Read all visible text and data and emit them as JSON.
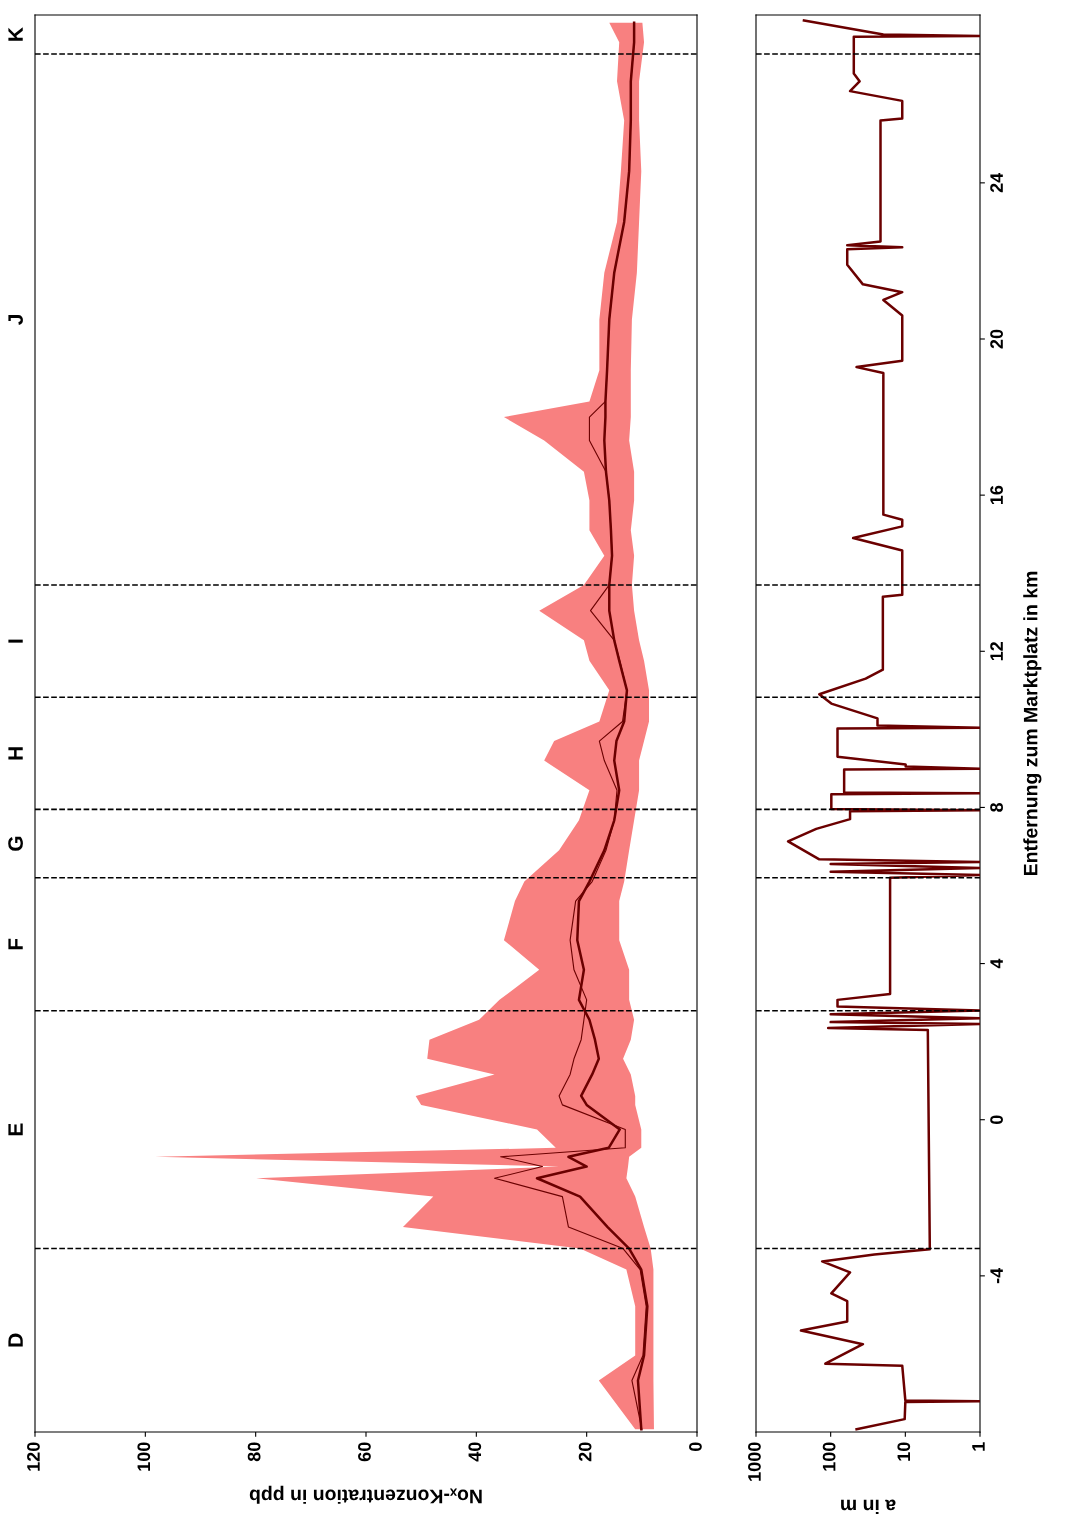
{
  "chart_data": [
    {
      "type": "line",
      "orientation": "horizontal",
      "xlabel": "Noₓ-Konzentration in ppb",
      "xlim": [
        120,
        0
      ],
      "xticks": [
        0,
        20,
        40,
        60,
        80,
        100,
        120
      ],
      "ylim": [
        -8.0,
        28.3
      ],
      "tick_labels": "x",
      "grid": false,
      "ref_lines": [
        {
          "axis": "y",
          "value": -3.3,
          "color": "#000000",
          "line_style": "dashed"
        },
        {
          "axis": "y",
          "value": 2.79,
          "color": "#000000",
          "line_style": "dashed"
        },
        {
          "axis": "y",
          "value": 6.2,
          "color": "#000000",
          "line_style": "dashed"
        },
        {
          "axis": "y",
          "value": 7.95,
          "color": "#000000",
          "line_style": "dashed"
        },
        {
          "axis": "y",
          "value": 10.82,
          "color": "#000000",
          "line_style": "dashed"
        },
        {
          "axis": "y",
          "value": 13.7,
          "color": "#000000",
          "line_style": "dashed"
        },
        {
          "axis": "y",
          "value": 27.3,
          "color": "#000000",
          "line_style": "dashed"
        }
      ],
      "annotations": [
        "D",
        "E",
        "F",
        "G",
        "H",
        "I",
        "J",
        "K"
      ],
      "series": [
        {
          "color": "#6b0000",
          "x": [
            -7.93,
            -6.68,
            -6.04,
            -4.78,
            -3.84,
            -3.3,
            -2.75,
            -1.97,
            -1.5,
            -1.2,
            -0.95,
            -0.72,
            -0.25,
            0.38,
            0.61,
            1.16,
            1.56,
            2.05,
            2.56,
            3.07,
            3.84,
            4.6,
            5.6,
            6.1,
            6.9,
            7.67,
            8.44,
            9.2,
            9.7,
            10.2,
            11.0,
            11.76,
            12.28,
            13.04,
            13.7,
            14.45,
            15.1,
            15.86,
            16.6,
            17.4,
            18.0,
            18.4,
            19.2,
            20.5,
            21.7,
            23.0,
            24.3,
            25.6,
            26.6,
            27.6,
            28.1
          ],
          "values": [
            10.1,
            10.7,
            9.6,
            9.0,
            10.1,
            12.3,
            16.2,
            21.2,
            29,
            20,
            23.3,
            16,
            14,
            20,
            21,
            19,
            17.8,
            18.5,
            19.5,
            21.4,
            20.5,
            21.7,
            21.4,
            19.5,
            16.8,
            15,
            14.1,
            15,
            14.6,
            13.2,
            12.7,
            14.1,
            15,
            15.9,
            15.9,
            15.4,
            15.6,
            15.9,
            16.5,
            16.8,
            16.6,
            16.6,
            16.3,
            15.9,
            15,
            13.2,
            12.3,
            12,
            12,
            11.4,
            11.4
          ],
          "lower": [
            7.8,
            7.9,
            7.9,
            7.9,
            7.9,
            8.4,
            9.6,
            11.2,
            12.8,
            12.5,
            12.3,
            10.1,
            10.1,
            11.2,
            11.2,
            12,
            13.4,
            12,
            11.4,
            12.3,
            12.3,
            14.1,
            14.1,
            13.2,
            12.3,
            11.4,
            10.5,
            10.5,
            9.6,
            8.7,
            8.7,
            9.6,
            10.5,
            11.4,
            11.8,
            11.4,
            12,
            11.4,
            11.4,
            12.3,
            12,
            12,
            12,
            11.8,
            10.9,
            10.5,
            10.1,
            10.5,
            10.5,
            9.6,
            9.9
          ],
          "upper": [
            11.2,
            17.8,
            11.2,
            11.2,
            12.8,
            21.2,
            53.3,
            47.8,
            79.9,
            25,
            98.2,
            25.6,
            29,
            50,
            51,
            36.7,
            48.9,
            48.5,
            39.5,
            35.8,
            28.6,
            35,
            33,
            31.3,
            25,
            21.4,
            19.5,
            27.7,
            25.9,
            17.7,
            15.9,
            19.5,
            20.5,
            28.6,
            20.5,
            16.8,
            19.5,
            19.5,
            20.5,
            27.7,
            35,
            19.5,
            17.7,
            17.7,
            16.8,
            14.5,
            13.8,
            13.2,
            14.5,
            14.1,
            15.9
          ]
        },
        {
          "color": "#6b0000",
          "x": [
            -7.93,
            -6.68,
            -6.04,
            -4.78,
            -3.84,
            -3.3,
            -2.75,
            -1.97,
            -1.5,
            -1.2,
            -0.95,
            -0.72,
            -0.25,
            0.38,
            0.61,
            1.16,
            1.56,
            2.05,
            2.56,
            3.07,
            3.84,
            4.6,
            5.6,
            6.1,
            6.9,
            7.67,
            8.44,
            9.2,
            9.7,
            10.2,
            11.0,
            11.76,
            12.28,
            13.04,
            13.7,
            14.45,
            15.1,
            15.86,
            16.6,
            17.4,
            18.0,
            18.4,
            19.2,
            20.5,
            21.7,
            23.0,
            24.3,
            25.6,
            26.6,
            27.6,
            28.1
          ],
          "values": [
            10,
            11.8,
            9.8,
            9.2,
            10.3,
            13.4,
            23.3,
            24.4,
            36.7,
            28,
            35.6,
            13,
            13,
            24.4,
            25,
            23,
            22.3,
            21,
            20.5,
            20,
            22.3,
            23,
            22,
            19,
            16.5,
            15,
            14.5,
            16.8,
            17.7,
            13.5,
            12.7,
            14,
            15,
            19.3,
            15.9,
            15.4,
            15.6,
            15.9,
            16.5,
            19.5,
            19.5,
            16.6,
            16.3,
            15.9,
            15,
            13.2,
            12.3,
            12,
            12,
            11.4,
            11.4
          ]
        }
      ]
    },
    {
      "type": "line",
      "orientation": "horizontal",
      "xlabel": "a in m",
      "ylabel": "Entfernung zum Marktplatz in km",
      "xlim": [
        1000,
        1
      ],
      "xticks": [
        1,
        10,
        100,
        1000
      ],
      "ylim": [
        -8.0,
        28.3
      ],
      "yticks": [
        -4,
        0,
        4,
        8,
        12,
        16,
        20,
        24
      ],
      "log": "x",
      "grid": false,
      "ref_lines": [
        {
          "axis": "y",
          "value": -3.3,
          "color": "#000000",
          "line_style": "dashed"
        },
        {
          "axis": "y",
          "value": 2.79,
          "color": "#000000",
          "line_style": "dashed"
        },
        {
          "axis": "y",
          "value": 6.2,
          "color": "#000000",
          "line_style": "dashed"
        },
        {
          "axis": "y",
          "value": 7.95,
          "color": "#000000",
          "line_style": "dashed"
        },
        {
          "axis": "y",
          "value": 10.82,
          "color": "#000000",
          "line_style": "dashed"
        },
        {
          "axis": "y",
          "value": 13.7,
          "color": "#000000",
          "line_style": "dashed"
        },
        {
          "axis": "y",
          "value": 27.3,
          "color": "#000000",
          "line_style": "dashed"
        }
      ],
      "series": [
        {
          "color": "#6b0000",
          "x": [
            -7.93,
            -7.67,
            -7.23,
            -7.21,
            -7.19,
            -6.3,
            -6.25,
            -5.75,
            -5.4,
            -5.17,
            -4.65,
            -4.45,
            -3.91,
            -3.63,
            -3.45,
            -3.32,
            2.3,
            2.35,
            2.45,
            2.5,
            2.6,
            2.7,
            2.8,
            2.9,
            3.07,
            3.22,
            6.2,
            6.27,
            6.35,
            6.45,
            6.55,
            6.6,
            6.67,
            7.13,
            7.45,
            7.7,
            7.9,
            7.93,
            7.96,
            8.16,
            8.34,
            8.36,
            8.38,
            8.54,
            8.97,
            8.99,
            9.05,
            9.1,
            9.3,
            9.57,
            10.02,
            10.04,
            10.1,
            10.28,
            10.66,
            10.9,
            11.3,
            11.53,
            13.4,
            13.45,
            14.58,
            14.9,
            15.2,
            15.37,
            15.5,
            19.13,
            19.28,
            19.44,
            20.25,
            20.6,
            21.0,
            21.2,
            21.4,
            21.9,
            22.3,
            22.35,
            22.4,
            22.5,
            25.6,
            25.65,
            26.1,
            26.35,
            26.6,
            26.8,
            27.2,
            27.74,
            27.76,
            27.8,
            28.16
          ],
          "values": [
            45,
            10.2,
            10,
            1,
            10,
            11,
            118,
            37,
            250,
            60,
            60,
            98,
            55,
            130,
            26,
            4.7,
            5,
            108,
            1,
            100,
            1,
            100,
            1,
            81,
            81,
            16,
            16,
            1,
            100,
            1,
            100,
            1,
            142,
            372,
            156,
            55,
            55,
            1,
            98,
            98,
            98,
            1,
            66,
            66,
            66,
            1,
            9.9,
            9.9,
            81,
            81,
            81,
            1,
            23.6,
            23.6,
            98,
            142,
            34,
            20,
            20,
            11,
            11,
            50,
            11,
            11,
            19.7,
            19.7,
            45,
            11,
            11,
            11,
            19.7,
            11,
            37,
            60,
            60,
            11,
            60,
            21.5,
            21.5,
            11,
            11,
            55,
            41,
            49,
            49,
            49,
            1,
            19.7,
            228
          ]
        }
      ]
    }
  ]
}
